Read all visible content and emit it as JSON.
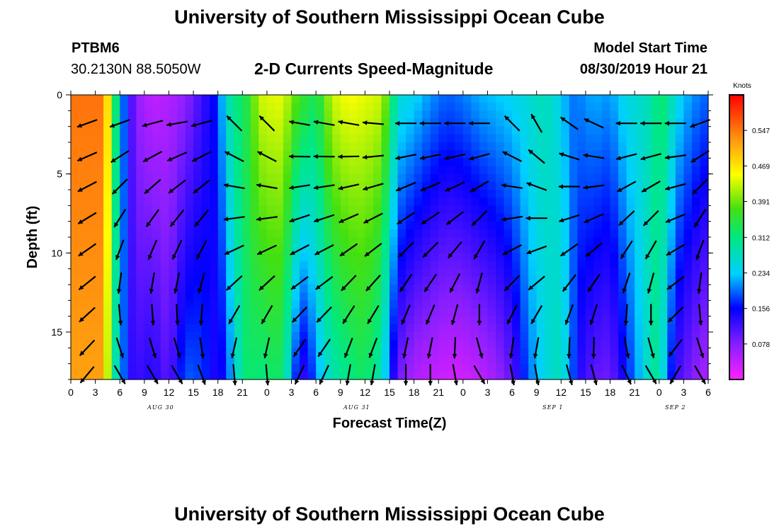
{
  "header": {
    "title_top": "University of Southern Mississippi Ocean Cube",
    "title_bottom": "University of Southern Mississippi Ocean Cube",
    "station_id": "PTBM6",
    "station_coords": "30.2130N 88.5050W",
    "model_start_label": "Model Start Time",
    "model_start_value": "08/30/2019 Hour 21"
  },
  "chart_data": {
    "type": "heatmap",
    "title": "2-D Currents Speed-Magnitude",
    "xlabel": "Forecast Time(Z)",
    "ylabel": "Depth (ft)",
    "x_hours_since_start": [
      0,
      78
    ],
    "x_ticks": [
      {
        "h": 0,
        "label": "0"
      },
      {
        "h": 3,
        "label": "3"
      },
      {
        "h": 6,
        "label": "6"
      },
      {
        "h": 9,
        "label": "9"
      },
      {
        "h": 12,
        "label": "12"
      },
      {
        "h": 15,
        "label": "15"
      },
      {
        "h": 18,
        "label": "18"
      },
      {
        "h": 21,
        "label": "21"
      },
      {
        "h": 24,
        "label": "0"
      },
      {
        "h": 27,
        "label": "3"
      },
      {
        "h": 30,
        "label": "6"
      },
      {
        "h": 33,
        "label": "9"
      },
      {
        "h": 36,
        "label": "12"
      },
      {
        "h": 39,
        "label": "15"
      },
      {
        "h": 42,
        "label": "18"
      },
      {
        "h": 45,
        "label": "21"
      },
      {
        "h": 48,
        "label": "0"
      },
      {
        "h": 51,
        "label": "3"
      },
      {
        "h": 54,
        "label": "6"
      },
      {
        "h": 57,
        "label": "9"
      },
      {
        "h": 60,
        "label": "12"
      },
      {
        "h": 63,
        "label": "15"
      },
      {
        "h": 66,
        "label": "18"
      },
      {
        "h": 69,
        "label": "21"
      },
      {
        "h": 72,
        "label": "0"
      },
      {
        "h": 75,
        "label": "3"
      },
      {
        "h": 78,
        "label": "6"
      }
    ],
    "date_labels": [
      {
        "h": 11,
        "label": "AUG 30"
      },
      {
        "h": 35,
        "label": "AUG 31"
      },
      {
        "h": 59,
        "label": "SEP 1"
      },
      {
        "h": 74,
        "label": "SEP 2"
      }
    ],
    "y_ticks": [
      0,
      5,
      10,
      15
    ],
    "ylim": [
      0,
      18
    ],
    "colorbar": {
      "unit": "Knots",
      "range": [
        0,
        0.625
      ],
      "tick_labels": [
        "0.547",
        "0.469",
        "0.391",
        "0.312",
        "0.234",
        "0.156",
        "0.078"
      ],
      "tick_values": [
        0.547,
        0.469,
        0.391,
        0.312,
        0.234,
        0.156,
        0.078
      ]
    },
    "speed_profile": [
      {
        "h": 0,
        "top": 0.55,
        "bot": 0.52
      },
      {
        "h": 4,
        "top": 0.55,
        "bot": 0.52
      },
      {
        "h": 5,
        "top": 0.4,
        "bot": 0.33
      },
      {
        "h": 6,
        "top": 0.24,
        "bot": 0.24
      },
      {
        "h": 7,
        "top": 0.14,
        "bot": 0.14
      },
      {
        "h": 8,
        "top": 0.07,
        "bot": 0.12
      },
      {
        "h": 10,
        "top": 0.04,
        "bot": 0.14
      },
      {
        "h": 12,
        "top": 0.05,
        "bot": 0.1
      },
      {
        "h": 14,
        "top": 0.07,
        "bot": 0.19
      },
      {
        "h": 16,
        "top": 0.12,
        "bot": 0.18
      },
      {
        "h": 18,
        "top": 0.17,
        "bot": 0.13
      },
      {
        "h": 19,
        "top": 0.27,
        "bot": 0.17
      },
      {
        "h": 20,
        "top": 0.31,
        "bot": 0.24
      },
      {
        "h": 21,
        "top": 0.33,
        "bot": 0.31
      },
      {
        "h": 22,
        "top": 0.36,
        "bot": 0.33
      },
      {
        "h": 23,
        "top": 0.43,
        "bot": 0.31
      },
      {
        "h": 25,
        "top": 0.44,
        "bot": 0.33
      },
      {
        "h": 26,
        "top": 0.44,
        "bot": 0.32
      },
      {
        "h": 27,
        "top": 0.4,
        "bot": 0.22
      },
      {
        "h": 28,
        "top": 0.37,
        "bot": 0.12
      },
      {
        "h": 29,
        "top": 0.35,
        "bot": 0.14
      },
      {
        "h": 30,
        "top": 0.33,
        "bot": 0.2
      },
      {
        "h": 31,
        "top": 0.38,
        "bot": 0.25
      },
      {
        "h": 32,
        "top": 0.43,
        "bot": 0.28
      },
      {
        "h": 34,
        "top": 0.45,
        "bot": 0.31
      },
      {
        "h": 36,
        "top": 0.44,
        "bot": 0.33
      },
      {
        "h": 38,
        "top": 0.43,
        "bot": 0.28
      },
      {
        "h": 39,
        "top": 0.36,
        "bot": 0.18
      },
      {
        "h": 40,
        "top": 0.26,
        "bot": 0.09
      },
      {
        "h": 42,
        "top": 0.24,
        "bot": 0.05
      },
      {
        "h": 44,
        "top": 0.21,
        "bot": 0.04
      },
      {
        "h": 46,
        "top": 0.19,
        "bot": 0.03
      },
      {
        "h": 48,
        "top": 0.2,
        "bot": 0.03
      },
      {
        "h": 50,
        "top": 0.22,
        "bot": 0.04
      },
      {
        "h": 52,
        "top": 0.23,
        "bot": 0.06
      },
      {
        "h": 54,
        "top": 0.24,
        "bot": 0.1
      },
      {
        "h": 56,
        "top": 0.26,
        "bot": 0.19
      },
      {
        "h": 58,
        "top": 0.28,
        "bot": 0.25
      },
      {
        "h": 60,
        "top": 0.24,
        "bot": 0.28
      },
      {
        "h": 61,
        "top": 0.2,
        "bot": 0.22
      },
      {
        "h": 62,
        "top": 0.2,
        "bot": 0.14
      },
      {
        "h": 64,
        "top": 0.22,
        "bot": 0.1
      },
      {
        "h": 66,
        "top": 0.21,
        "bot": 0.09
      },
      {
        "h": 68,
        "top": 0.25,
        "bot": 0.16
      },
      {
        "h": 70,
        "top": 0.27,
        "bot": 0.24
      },
      {
        "h": 71,
        "top": 0.28,
        "bot": 0.29
      },
      {
        "h": 72,
        "top": 0.33,
        "bot": 0.3
      },
      {
        "h": 73,
        "top": 0.31,
        "bot": 0.2
      },
      {
        "h": 74,
        "top": 0.25,
        "bot": 0.12
      },
      {
        "h": 76,
        "top": 0.21,
        "bot": 0.08
      },
      {
        "h": 78,
        "top": 0.19,
        "bot": 0.05
      }
    ],
    "vector_depths_ft": [
      1.8,
      3.9,
      5.8,
      7.8,
      9.8,
      11.9,
      13.9,
      16.0,
      17.7
    ],
    "vector_times_h": [
      2,
      6,
      10,
      13,
      16,
      20,
      24,
      28,
      31,
      34,
      37,
      41,
      44,
      47,
      50,
      54,
      57,
      61,
      64,
      68,
      71,
      74,
      77
    ],
    "vector_dir_top_deg": [
      200,
      200,
      195,
      190,
      195,
      135,
      135,
      170,
      170,
      170,
      175,
      180,
      180,
      180,
      180,
      135,
      120,
      145,
      155,
      180,
      180,
      180,
      200
    ],
    "vector_dir_bottom_deg": [
      230,
      300,
      300,
      300,
      290,
      275,
      275,
      245,
      245,
      260,
      260,
      270,
      270,
      280,
      300,
      280,
      280,
      285,
      285,
      295,
      300,
      240,
      300
    ]
  }
}
